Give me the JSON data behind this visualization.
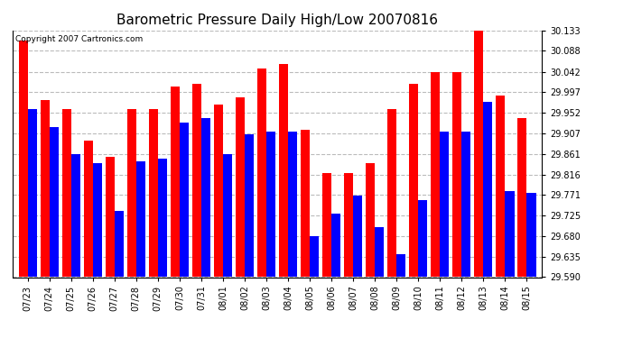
{
  "title": "Barometric Pressure Daily High/Low 20070816",
  "copyright": "Copyright 2007 Cartronics.com",
  "dates": [
    "07/23",
    "07/24",
    "07/25",
    "07/26",
    "07/27",
    "07/28",
    "07/29",
    "07/30",
    "07/31",
    "08/01",
    "08/02",
    "08/03",
    "08/04",
    "08/05",
    "08/06",
    "08/07",
    "08/08",
    "08/09",
    "08/10",
    "08/11",
    "08/12",
    "08/13",
    "08/14",
    "08/15"
  ],
  "highs": [
    30.11,
    29.98,
    29.96,
    29.89,
    29.855,
    29.96,
    29.96,
    30.01,
    30.015,
    29.97,
    29.985,
    30.05,
    30.06,
    29.915,
    29.82,
    29.82,
    29.84,
    29.96,
    30.015,
    30.042,
    30.042,
    30.133,
    29.99,
    29.94
  ],
  "lows": [
    29.96,
    29.92,
    29.86,
    29.84,
    29.735,
    29.845,
    29.85,
    29.93,
    29.94,
    29.86,
    29.905,
    29.91,
    29.91,
    29.68,
    29.73,
    29.77,
    29.7,
    29.64,
    29.76,
    29.91,
    29.91,
    29.975,
    29.78,
    29.775
  ],
  "high_color": "#ff0000",
  "low_color": "#0000ff",
  "bg_color": "#ffffff",
  "plot_bg_color": "#ffffff",
  "grid_color": "#bbbbbb",
  "ymin": 29.59,
  "ymax": 30.133,
  "yticks": [
    29.59,
    29.635,
    29.68,
    29.725,
    29.771,
    29.816,
    29.861,
    29.907,
    29.952,
    29.997,
    30.042,
    30.088,
    30.133
  ],
  "bar_width": 0.42,
  "title_fontsize": 11,
  "tick_fontsize": 7,
  "copyright_fontsize": 6.5
}
